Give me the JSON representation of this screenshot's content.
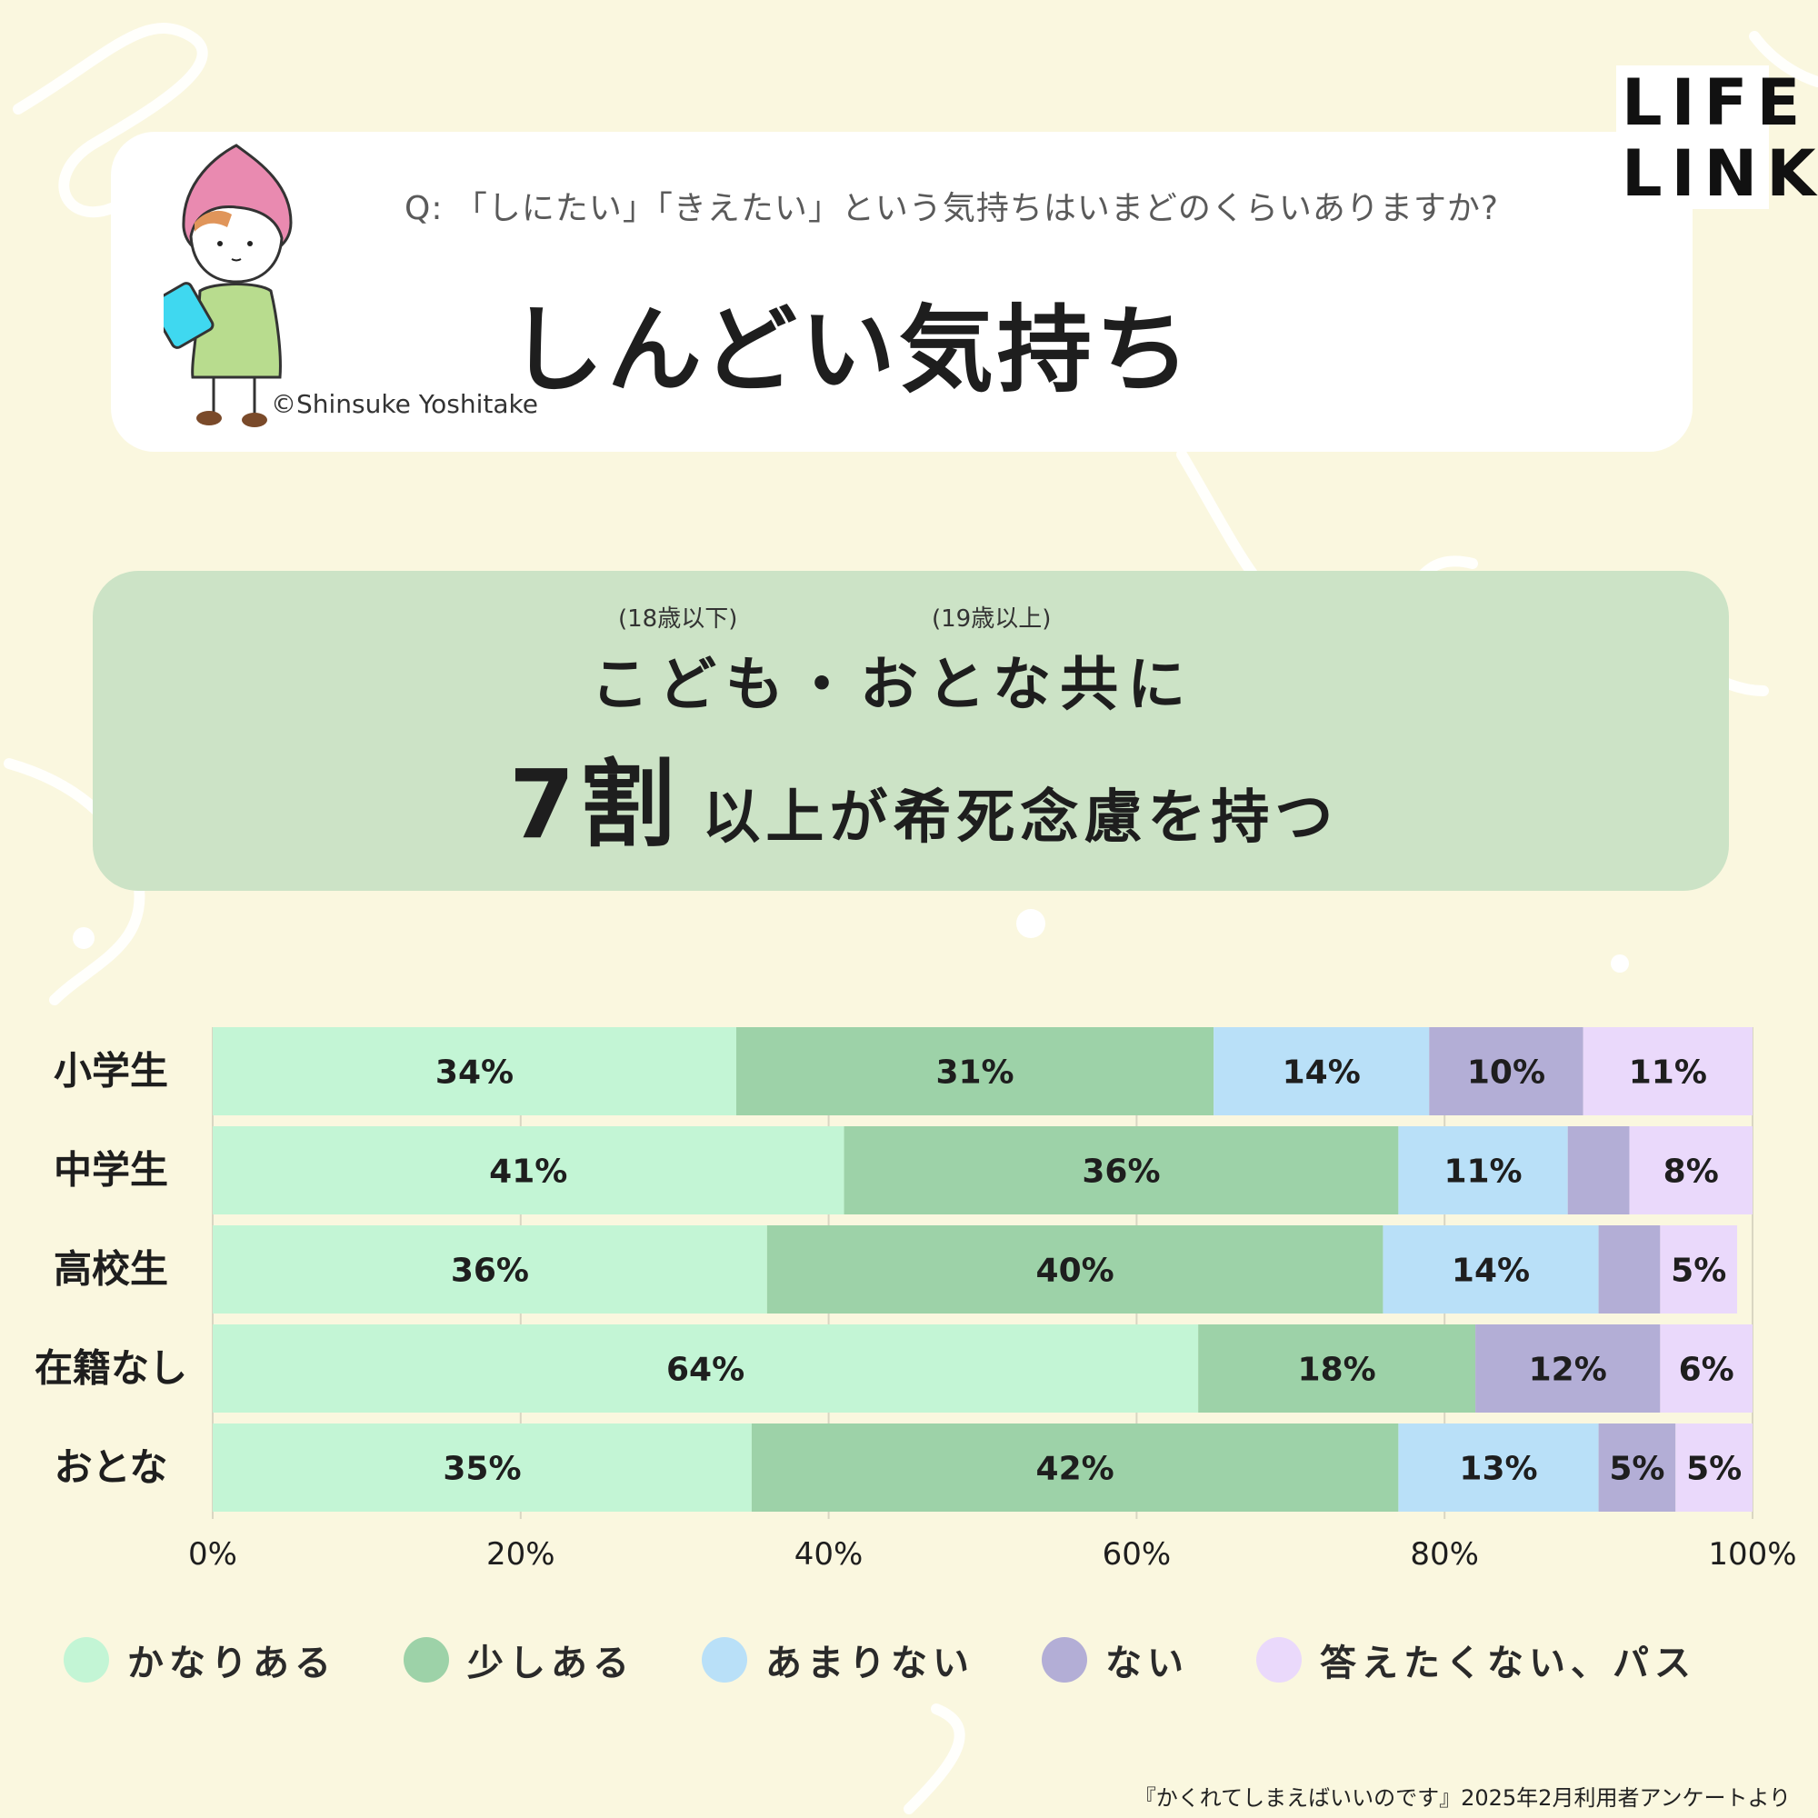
{
  "header": {
    "question": "Q: 「しにたい」「きえたい」という気持ちはいまどのくらいありますか?",
    "title": "しんどい気持ち",
    "credit": "©Shinsuke Yoshitake",
    "logo_line1": "LIFE",
    "logo_line2": "LINK"
  },
  "headline": {
    "ruby_children": "(18歳以下)",
    "ruby_adults": "(19歳以上)",
    "line1": "こども・おとな共に",
    "big": "7割",
    "line2_rest": "以上が希死念慮を持つ"
  },
  "colors": {
    "background": "#faf7df",
    "card_green": "#cce3c6",
    "logo_accent": "#e8302c"
  },
  "chart_data": {
    "type": "bar",
    "orientation": "horizontal",
    "stacked": true,
    "categories": [
      "小学生",
      "中学生",
      "高校生",
      "在籍なし",
      "おとな"
    ],
    "series": [
      {
        "name": "かなりある",
        "color": "#c3f5d5",
        "values": [
          34,
          41,
          36,
          64,
          35
        ],
        "labels": [
          "34%",
          "41%",
          "36%",
          "64%",
          "35%"
        ]
      },
      {
        "name": "少しある",
        "color": "#9dd2a8",
        "values": [
          31,
          36,
          40,
          18,
          42
        ],
        "labels": [
          "31%",
          "36%",
          "40%",
          "18%",
          "42%"
        ]
      },
      {
        "name": "あまりない",
        "color": "#b9e0f8",
        "values": [
          14,
          11,
          14,
          0,
          13
        ],
        "labels": [
          "14%",
          "11%",
          "14%",
          "",
          "13%"
        ]
      },
      {
        "name": "ない",
        "color": "#b3aed6",
        "values": [
          10,
          4,
          4,
          12,
          5
        ],
        "labels": [
          "10%",
          "",
          "",
          "12%",
          "5%"
        ]
      },
      {
        "name": "答えたくない、パス",
        "color": "#ead9fb",
        "values": [
          11,
          8,
          5,
          6,
          5
        ],
        "labels": [
          "11%",
          "8%",
          "5%",
          "6%",
          "5%"
        ]
      }
    ],
    "xlim": [
      0,
      100
    ],
    "x_ticks": [
      "0%",
      "20%",
      "40%",
      "60%",
      "80%",
      "100%"
    ],
    "grid": "vertical",
    "legend_position": "bottom"
  },
  "footer": {
    "source": "『かくれてしまえばいいのです』2025年2月利用者アンケートより"
  }
}
